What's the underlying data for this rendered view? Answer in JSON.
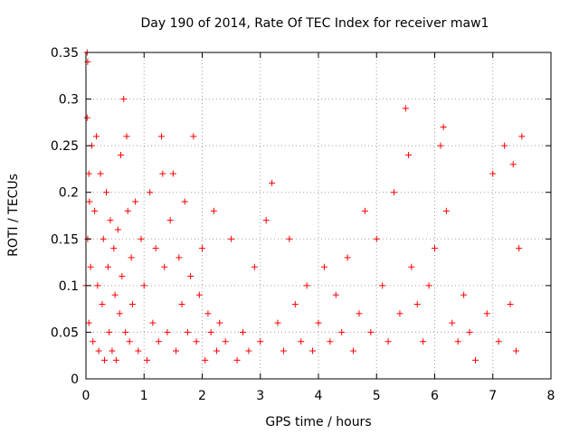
{
  "chart_data": {
    "type": "scatter",
    "title": "Day 190 of 2014, Rate Of TEC Index for receiver maw1",
    "xlabel": "GPS time / hours",
    "ylabel": "ROTI / TECUs",
    "xlim": [
      0,
      8
    ],
    "ylim": [
      0,
      0.35
    ],
    "xticks": [
      0,
      1,
      2,
      3,
      4,
      5,
      6,
      7,
      8
    ],
    "xtick_labels": [
      "0",
      "1",
      "2",
      "3",
      "4",
      "5",
      "6",
      "7",
      "8"
    ],
    "yticks": [
      0,
      0.05,
      0.1,
      0.15,
      0.2,
      0.25,
      0.3,
      0.35
    ],
    "ytick_labels": [
      "0",
      "0.05",
      "0.1",
      "0.15",
      "0.2",
      "0.25",
      "0.3",
      "0.35"
    ],
    "grid": true,
    "marker": "+",
    "color": "#ff0000",
    "series": [
      {
        "name": "ROTI",
        "x": [
          0.0,
          0.02,
          0.02,
          0.03,
          0.03,
          0.05,
          0.05,
          0.06,
          0.08,
          0.1,
          0.12,
          0.15,
          0.18,
          0.2,
          0.22,
          0.25,
          0.28,
          0.3,
          0.32,
          0.35,
          0.38,
          0.4,
          0.42,
          0.45,
          0.48,
          0.5,
          0.52,
          0.55,
          0.58,
          0.6,
          0.62,
          0.65,
          0.68,
          0.7,
          0.72,
          0.75,
          0.78,
          0.8,
          0.85,
          0.9,
          0.95,
          1.0,
          1.05,
          1.1,
          1.15,
          1.2,
          1.25,
          1.3,
          1.32,
          1.35,
          1.4,
          1.45,
          1.5,
          1.55,
          1.6,
          1.65,
          1.7,
          1.75,
          1.8,
          1.85,
          1.9,
          1.95,
          2.0,
          2.05,
          2.1,
          2.15,
          2.2,
          2.25,
          2.3,
          2.4,
          2.5,
          2.6,
          2.7,
          2.8,
          2.9,
          3.0,
          3.1,
          3.2,
          3.3,
          3.4,
          3.5,
          3.6,
          3.7,
          3.8,
          3.9,
          4.0,
          4.1,
          4.2,
          4.3,
          4.4,
          4.5,
          4.6,
          4.7,
          4.8,
          4.9,
          5.0,
          5.1,
          5.2,
          5.3,
          5.4,
          5.5,
          5.55,
          5.6,
          5.7,
          5.8,
          5.9,
          6.0,
          6.1,
          6.15,
          6.2,
          6.3,
          6.4,
          6.5,
          6.6,
          6.7,
          6.9,
          7.0,
          7.1,
          7.2,
          7.3,
          7.35,
          7.4,
          7.45,
          7.5
        ],
        "y": [
          0.1,
          0.35,
          0.28,
          0.34,
          0.15,
          0.22,
          0.06,
          0.19,
          0.12,
          0.25,
          0.04,
          0.18,
          0.26,
          0.1,
          0.03,
          0.22,
          0.08,
          0.15,
          0.02,
          0.2,
          0.12,
          0.05,
          0.17,
          0.03,
          0.14,
          0.09,
          0.02,
          0.16,
          0.07,
          0.24,
          0.11,
          0.3,
          0.05,
          0.26,
          0.18,
          0.04,
          0.13,
          0.08,
          0.19,
          0.03,
          0.15,
          0.1,
          0.02,
          0.2,
          0.06,
          0.14,
          0.04,
          0.26,
          0.22,
          0.12,
          0.05,
          0.17,
          0.22,
          0.03,
          0.13,
          0.08,
          0.19,
          0.05,
          0.11,
          0.26,
          0.04,
          0.09,
          0.14,
          0.02,
          0.07,
          0.05,
          0.18,
          0.03,
          0.06,
          0.04,
          0.15,
          0.02,
          0.05,
          0.03,
          0.12,
          0.04,
          0.17,
          0.21,
          0.06,
          0.03,
          0.15,
          0.08,
          0.04,
          0.1,
          0.03,
          0.06,
          0.12,
          0.04,
          0.09,
          0.05,
          0.13,
          0.03,
          0.07,
          0.18,
          0.05,
          0.15,
          0.1,
          0.04,
          0.2,
          0.07,
          0.29,
          0.24,
          0.12,
          0.08,
          0.04,
          0.1,
          0.14,
          0.25,
          0.27,
          0.18,
          0.06,
          0.04,
          0.09,
          0.05,
          0.02,
          0.07,
          0.22,
          0.04,
          0.25,
          0.08,
          0.23,
          0.03,
          0.14,
          0.26
        ]
      }
    ]
  }
}
